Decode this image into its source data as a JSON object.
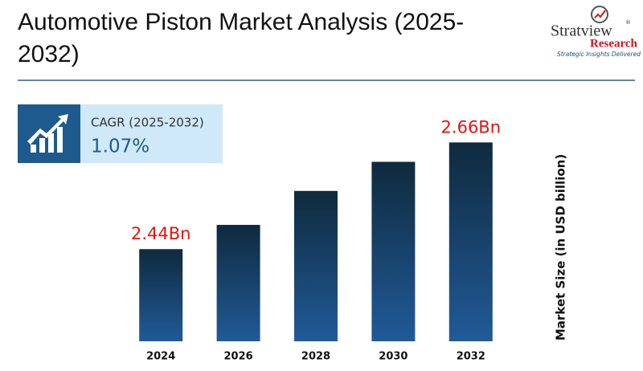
{
  "header": {
    "title": "Automotive Piston Market Analysis (2025-2032)",
    "logo": {
      "name": "Stratview",
      "registered": "®",
      "sub": "Research",
      "tagline": "Strategic Insights Delivered"
    }
  },
  "cagr": {
    "label": "CAGR (2025-2032)",
    "value": "1.07%"
  },
  "chart_data": {
    "type": "bar",
    "categories": [
      "2024",
      "2026",
      "2028",
      "2030",
      "2032"
    ],
    "values": [
      2.44,
      2.49,
      2.56,
      2.62,
      2.66
    ],
    "value_labels": [
      "2.44Bn",
      null,
      null,
      null,
      "2.66Bn"
    ],
    "ylabel": "Market Size (in USD billion)",
    "ylim": [
      2.25,
      2.75
    ],
    "color": [
      "#0f2a3d",
      "#215a98"
    ],
    "label_color": "#e8120c"
  }
}
